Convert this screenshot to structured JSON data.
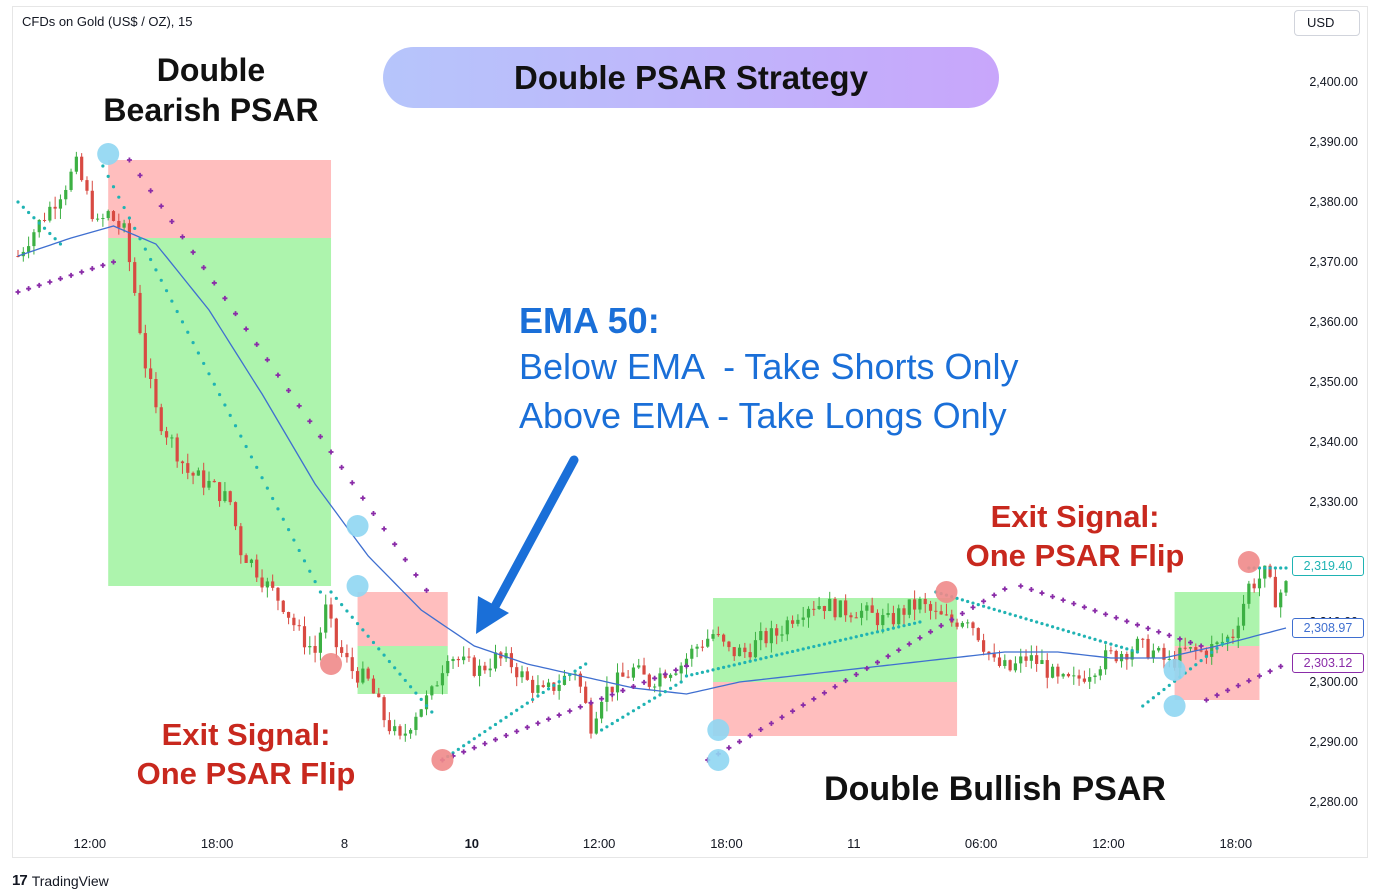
{
  "header": {
    "symbol_label": "CFDs on Gold (US$ / OZ), 15",
    "currency_button": "USD"
  },
  "footer": {
    "brand": "TradingView",
    "brand_mark": "17"
  },
  "annotations": {
    "strategy_title": "Double PSAR Strategy",
    "double_bearish_line1": "Double",
    "double_bearish_line2": "Bearish PSAR",
    "double_bullish": "Double Bullish PSAR",
    "exit_left_line1": "Exit Signal:",
    "exit_left_line2": "One PSAR Flip",
    "exit_right_line1": "Exit Signal:",
    "exit_right_line2": "One PSAR Flip",
    "ema_title": "EMA 50:",
    "ema_line1": "Below EMA  - Take Shorts Only",
    "ema_line2": "Above EMA - Take Longs Only"
  },
  "colors": {
    "up": "#3cb043",
    "down": "#d84a42",
    "ema": "#3f6fd0",
    "psar_fast": "#1fb3b3",
    "psar_slow": "#8a2ca8",
    "signal_blue": "#8fd6f2",
    "signal_red": "#f08a8a",
    "profit_zone": "#9ff29f",
    "loss_zone": "#ffb3b3",
    "annotation_red": "#c8281e",
    "annotation_blue": "#1a6fd8",
    "arrow": "#1a6fd8"
  },
  "price_tags": [
    {
      "value": "2,319.40",
      "price": 2319.4,
      "color": "#1fb3b3"
    },
    {
      "value": "2,308.97",
      "price": 2308.97,
      "color": "#3f6fd0"
    },
    {
      "value": "2,303.12",
      "price": 2303.12,
      "color": "#8a2ca8"
    }
  ],
  "chart_data": {
    "type": "candlestick",
    "title": "",
    "y_axis": {
      "range": [
        2277,
        2407
      ],
      "ticks": [
        "2,280.00",
        "2,290.00",
        "2,300.00",
        "2,310.00",
        "2,320.00",
        "2,330.00",
        "2,340.00",
        "2,350.00",
        "2,360.00",
        "2,370.00",
        "2,380.00",
        "2,390.00",
        "2,400.00"
      ],
      "tick_values": [
        2280,
        2290,
        2300,
        2310,
        2320,
        2330,
        2340,
        2350,
        2360,
        2370,
        2380,
        2390,
        2400
      ]
    },
    "x_axis": {
      "ticks": [
        {
          "label": "12:00",
          "bar": 6,
          "bold": false
        },
        {
          "label": "18:00",
          "bar": 30,
          "bold": false
        },
        {
          "label": "8",
          "bar": 54,
          "bold": false
        },
        {
          "label": "10",
          "bar": 78,
          "bold": true
        },
        {
          "label": "12:00",
          "bar": 102,
          "bold": false
        },
        {
          "label": "18:00",
          "bar": 126,
          "bold": false
        },
        {
          "label": "11",
          "bar": 150,
          "bold": false
        },
        {
          "label": "06:00",
          "bar": 174,
          "bold": false
        },
        {
          "label": "12:00",
          "bar": 198,
          "bold": false
        },
        {
          "label": "18:00",
          "bar": 222,
          "bold": false
        }
      ]
    },
    "anchors": [
      [
        0,
        2371
      ],
      [
        2,
        2374
      ],
      [
        6,
        2379
      ],
      [
        9,
        2383
      ],
      [
        11,
        2386
      ],
      [
        13,
        2381
      ],
      [
        15,
        2376
      ],
      [
        17,
        2378
      ],
      [
        20,
        2375
      ],
      [
        22,
        2365
      ],
      [
        24,
        2353
      ],
      [
        26,
        2345
      ],
      [
        29,
        2340
      ],
      [
        32,
        2335
      ],
      [
        36,
        2333
      ],
      [
        40,
        2330
      ],
      [
        42,
        2322
      ],
      [
        44,
        2320
      ],
      [
        47,
        2316
      ],
      [
        50,
        2313
      ],
      [
        53,
        2308
      ],
      [
        56,
        2305
      ],
      [
        58,
        2312
      ],
      [
        60,
        2306
      ],
      [
        63,
        2302
      ],
      [
        66,
        2300
      ],
      [
        69,
        2294
      ],
      [
        72,
        2290
      ],
      [
        75,
        2295
      ],
      [
        78,
        2298
      ],
      [
        81,
        2305
      ],
      [
        84,
        2303
      ],
      [
        87,
        2302
      ],
      [
        90,
        2304
      ],
      [
        93,
        2303
      ],
      [
        96,
        2300
      ],
      [
        99,
        2298
      ],
      [
        102,
        2300
      ],
      [
        105,
        2302
      ],
      [
        108,
        2293
      ],
      [
        110,
        2298
      ],
      [
        113,
        2300
      ],
      [
        116,
        2302
      ],
      [
        119,
        2300
      ],
      [
        122,
        2302
      ],
      [
        125,
        2303
      ],
      [
        128,
        2306
      ],
      [
        131,
        2308
      ],
      [
        134,
        2305
      ],
      [
        137,
        2305
      ],
      [
        140,
        2307
      ],
      [
        143,
        2308
      ],
      [
        146,
        2311
      ],
      [
        149,
        2313
      ],
      [
        152,
        2313
      ],
      [
        155,
        2312
      ],
      [
        158,
        2312
      ],
      [
        161,
        2311
      ],
      [
        164,
        2310
      ],
      [
        167,
        2312
      ],
      [
        170,
        2313
      ],
      [
        173,
        2311
      ],
      [
        176,
        2310
      ],
      [
        179,
        2311
      ],
      [
        181,
        2308
      ],
      [
        184,
        2303
      ],
      [
        187,
        2302
      ],
      [
        190,
        2304
      ],
      [
        193,
        2303
      ],
      [
        196,
        2300
      ],
      [
        199,
        2300
      ],
      [
        202,
        2302
      ],
      [
        205,
        2304
      ],
      [
        208,
        2305
      ],
      [
        211,
        2306
      ],
      [
        214,
        2305
      ],
      [
        217,
        2303
      ],
      [
        220,
        2305
      ],
      [
        223,
        2305
      ],
      [
        226,
        2306
      ],
      [
        229,
        2308
      ],
      [
        232,
        2316
      ],
      [
        235,
        2318
      ],
      [
        237,
        2314
      ],
      [
        239,
        2316
      ]
    ],
    "ema50": [
      [
        0,
        2371
      ],
      [
        10,
        2374
      ],
      [
        18,
        2376
      ],
      [
        26,
        2373
      ],
      [
        36,
        2362
      ],
      [
        46,
        2348
      ],
      [
        56,
        2333
      ],
      [
        66,
        2321
      ],
      [
        76,
        2312
      ],
      [
        86,
        2306
      ],
      [
        96,
        2303
      ],
      [
        106,
        2301
      ],
      [
        116,
        2299
      ],
      [
        126,
        2298
      ],
      [
        136,
        2300
      ],
      [
        146,
        2301
      ],
      [
        156,
        2302
      ],
      [
        166,
        2303
      ],
      [
        176,
        2304
      ],
      [
        186,
        2305
      ],
      [
        196,
        2305
      ],
      [
        206,
        2304
      ],
      [
        216,
        2304
      ],
      [
        226,
        2306
      ],
      [
        239,
        2309
      ]
    ],
    "psar_fast": [
      {
        "start": 0,
        "end": 8,
        "from": 2380,
        "to": 2373
      },
      {
        "start": 16,
        "end": 57,
        "from": 2386,
        "to": 2315
      },
      {
        "start": 59,
        "end": 78,
        "from": 2315,
        "to": 2295
      },
      {
        "start": 80,
        "end": 107,
        "from": 2287,
        "to": 2303
      },
      {
        "start": 110,
        "end": 125,
        "from": 2292,
        "to": 2300
      },
      {
        "start": 126,
        "end": 170,
        "from": 2301,
        "to": 2310
      },
      {
        "start": 173,
        "end": 211,
        "from": 2315,
        "to": 2305
      },
      {
        "start": 212,
        "end": 228,
        "from": 2296,
        "to": 2307
      },
      {
        "start": 232,
        "end": 239,
        "from": 2319,
        "to": 2319
      }
    ],
    "psar_slow": [
      {
        "start": 0,
        "end": 18,
        "from": 2365,
        "to": 2370
      },
      {
        "start": 21,
        "end": 78,
        "from": 2387,
        "to": 2314
      },
      {
        "start": 80,
        "end": 127,
        "from": 2287,
        "to": 2303
      },
      {
        "start": 130,
        "end": 187,
        "from": 2287,
        "to": 2316
      },
      {
        "start": 189,
        "end": 223,
        "from": 2316,
        "to": 2306
      },
      {
        "start": 224,
        "end": 239,
        "from": 2297,
        "to": 2303
      }
    ],
    "zones": [
      {
        "kind": "loss",
        "bar_from": 17,
        "bar_to": 59,
        "top": 2387,
        "bottom": 2374
      },
      {
        "kind": "profit",
        "bar_from": 17,
        "bar_to": 59,
        "top": 2374,
        "bottom": 2316
      },
      {
        "kind": "loss",
        "bar_from": 64,
        "bar_to": 81,
        "top": 2315,
        "bottom": 2306
      },
      {
        "kind": "profit",
        "bar_from": 64,
        "bar_to": 81,
        "top": 2306,
        "bottom": 2298
      },
      {
        "kind": "profit",
        "bar_from": 131,
        "bar_to": 177,
        "top": 2314,
        "bottom": 2300
      },
      {
        "kind": "loss",
        "bar_from": 131,
        "bar_to": 177,
        "top": 2300,
        "bottom": 2291
      },
      {
        "kind": "profit",
        "bar_from": 218,
        "bar_to": 234,
        "top": 2315,
        "bottom": 2306
      },
      {
        "kind": "loss",
        "bar_from": 218,
        "bar_to": 234,
        "top": 2306,
        "bottom": 2297
      }
    ],
    "signals": [
      {
        "color": "blue",
        "bar": 17,
        "price": 2388
      },
      {
        "color": "blue",
        "bar": 64,
        "price": 2326
      },
      {
        "color": "blue",
        "bar": 64,
        "price": 2316
      },
      {
        "color": "red",
        "bar": 59,
        "price": 2303
      },
      {
        "color": "red",
        "bar": 80,
        "price": 2287
      },
      {
        "color": "blue",
        "bar": 132,
        "price": 2292
      },
      {
        "color": "blue",
        "bar": 132,
        "price": 2287
      },
      {
        "color": "red",
        "bar": 175,
        "price": 2315
      },
      {
        "color": "blue",
        "bar": 218,
        "price": 2302
      },
      {
        "color": "blue",
        "bar": 218,
        "price": 2296
      },
      {
        "color": "red",
        "bar": 232,
        "price": 2320
      }
    ]
  }
}
